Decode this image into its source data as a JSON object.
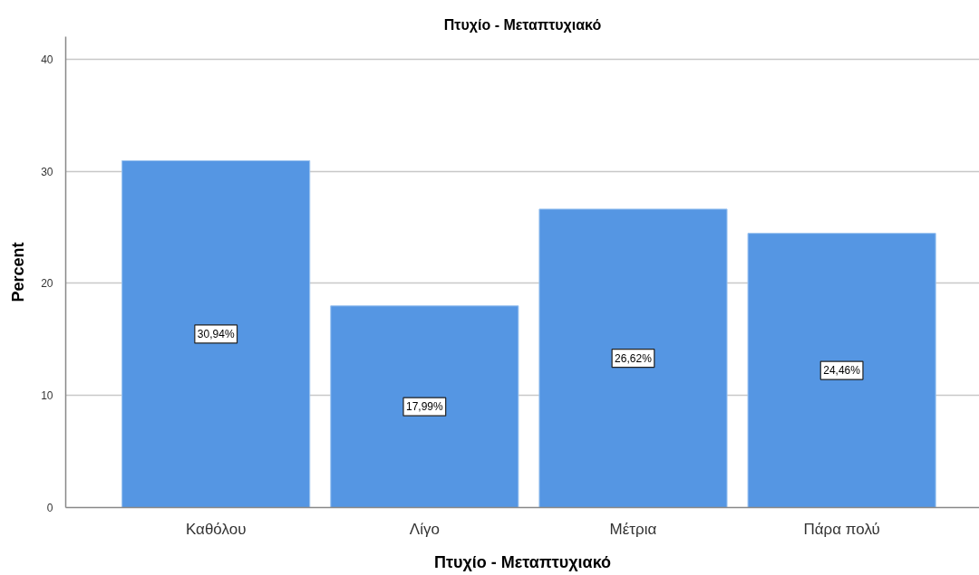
{
  "chart_data": {
    "type": "bar",
    "title": "Πτυχίο - Μεταπτυχιακό",
    "xlabel": "Πτυχίο - Μεταπτυχιακό",
    "ylabel": "Percent",
    "categories": [
      "Καθόλου",
      "Λίγο",
      "Μέτρια",
      "Πάρα πολύ"
    ],
    "values": [
      30.94,
      17.99,
      26.62,
      24.46
    ],
    "value_labels": [
      "30,94%",
      "17,99%",
      "26,62%",
      "24,46%"
    ],
    "color": "#5596e3",
    "ylim": [
      0,
      42
    ],
    "yticks": [
      0,
      10,
      20,
      30,
      40
    ],
    "grid": "y"
  }
}
